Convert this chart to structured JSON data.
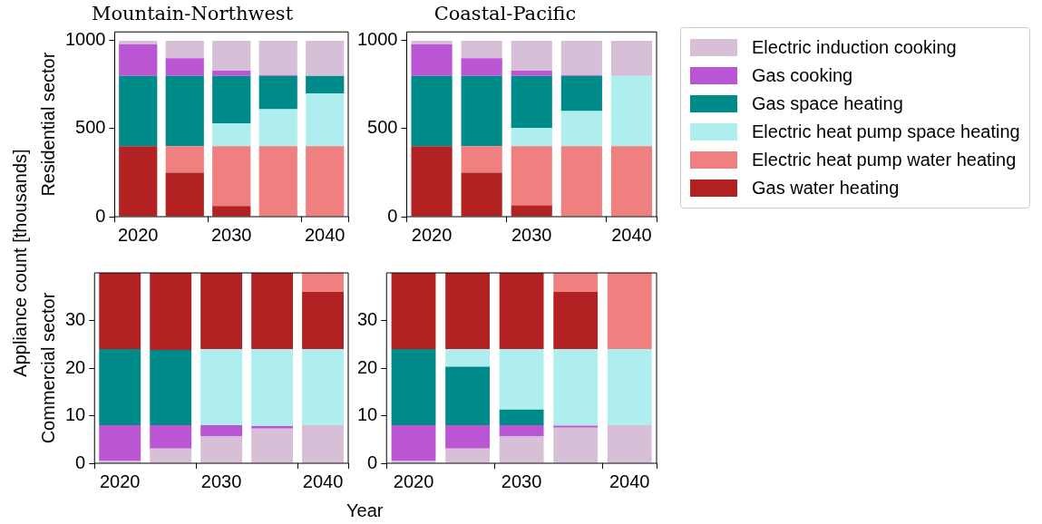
{
  "chart_data": [
    {
      "type": "bar",
      "stacked": true,
      "title": "Mountain-Northwest",
      "ylabel": "Residential sector",
      "categories": [
        "2020",
        null,
        "2030",
        null,
        "2040"
      ],
      "ylim": [
        0,
        1050
      ],
      "yticks": [
        0,
        500,
        1000
      ],
      "legend": "right",
      "series": [
        {
          "name": "Gas water heating",
          "color": "#b22222",
          "values": [
            400,
            250,
            60,
            0,
            0
          ]
        },
        {
          "name": "Electric heat pump water heating",
          "color": "#f08080",
          "values": [
            0,
            150,
            340,
            400,
            400
          ]
        },
        {
          "name": "Electric heat pump space heating",
          "color": "#afeeee",
          "values": [
            0,
            0,
            130,
            210,
            300
          ]
        },
        {
          "name": "Gas space heating",
          "color": "#008b8b",
          "values": [
            400,
            400,
            270,
            190,
            100
          ]
        },
        {
          "name": "Gas cooking",
          "color": "#ba55d3",
          "values": [
            180,
            100,
            30,
            5,
            0
          ]
        },
        {
          "name": "Electric induction cooking",
          "color": "#d8bfd8",
          "values": [
            20,
            100,
            170,
            195,
            200
          ]
        }
      ]
    },
    {
      "type": "bar",
      "stacked": true,
      "title": "Coastal-Pacific",
      "categories": [
        "2020",
        null,
        "2030",
        null,
        "2040"
      ],
      "ylim": [
        0,
        1050
      ],
      "yticks": [
        0,
        500,
        1000
      ],
      "series": [
        {
          "color": "#b22222",
          "values": [
            400,
            250,
            65,
            0,
            0
          ]
        },
        {
          "color": "#f08080",
          "values": [
            0,
            150,
            335,
            400,
            400
          ]
        },
        {
          "color": "#afeeee",
          "values": [
            0,
            0,
            105,
            200,
            400
          ]
        },
        {
          "color": "#008b8b",
          "values": [
            400,
            400,
            295,
            200,
            0
          ]
        },
        {
          "color": "#ba55d3",
          "values": [
            180,
            100,
            30,
            5,
            0
          ]
        },
        {
          "color": "#d8bfd8",
          "values": [
            20,
            100,
            170,
            195,
            200
          ]
        }
      ]
    },
    {
      "type": "bar",
      "stacked": true,
      "ylabel": "Commercial sector",
      "xlabel": "Year",
      "annotations": [
        "Appliance count [thousands]"
      ],
      "categories": [
        "2020",
        null,
        "2030",
        null,
        "2040"
      ],
      "ylim": [
        0,
        40
      ],
      "yticks": [
        0,
        10,
        20,
        30
      ],
      "series": [
        {
          "color": "#d8bfd8",
          "values": [
            0.5,
            3.1,
            5.6,
            7.3,
            8
          ]
        },
        {
          "color": "#ba55d3",
          "values": [
            7.5,
            4.9,
            2.4,
            0.5,
            0
          ]
        },
        {
          "color": "#008b8b",
          "values": [
            16,
            15.8,
            0,
            0,
            0
          ]
        },
        {
          "color": "#afeeee",
          "values": [
            0,
            0,
            16,
            16.2,
            16
          ]
        },
        {
          "color": "#b22222",
          "values": [
            16,
            16.2,
            16,
            16,
            12
          ]
        },
        {
          "color": "#f08080",
          "values": [
            0,
            0,
            0,
            0,
            4
          ]
        }
      ]
    },
    {
      "type": "bar",
      "stacked": true,
      "categories": [
        "2020",
        null,
        "2030",
        null,
        "2040"
      ],
      "ylim": [
        0,
        40
      ],
      "yticks": [
        0,
        10,
        20,
        30
      ],
      "series": [
        {
          "color": "#d8bfd8",
          "values": [
            0.5,
            3.1,
            5.6,
            7.5,
            8
          ]
        },
        {
          "color": "#ba55d3",
          "values": [
            7.5,
            4.9,
            2.4,
            0.4,
            0
          ]
        },
        {
          "color": "#008b8b",
          "values": [
            16,
            12.3,
            3.3,
            0,
            0
          ]
        },
        {
          "color": "#afeeee",
          "values": [
            0,
            3.7,
            12.7,
            16.1,
            16
          ]
        },
        {
          "color": "#b22222",
          "values": [
            16,
            16,
            16,
            12,
            0
          ]
        },
        {
          "color": "#f08080",
          "values": [
            0,
            0,
            0,
            4,
            16
          ]
        }
      ]
    }
  ]
}
